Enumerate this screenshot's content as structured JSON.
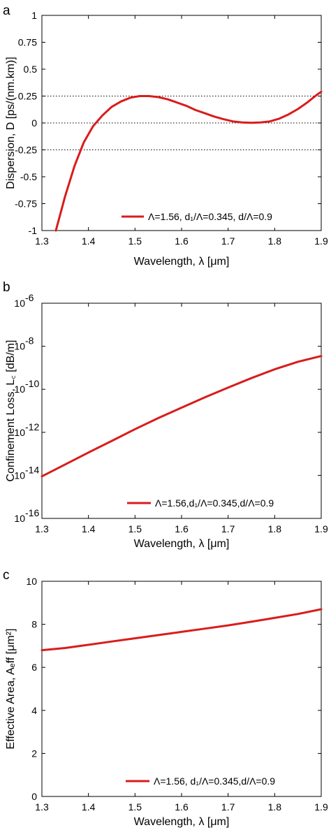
{
  "panels": [
    {
      "label": "a",
      "xlabel": "Wavelength, λ [μm]",
      "ylabel": "Dispersion, D [ps/(nm.km)]",
      "legend": "Λ=1.56, d₁/Λ=0.345, d/Λ=0.9"
    },
    {
      "label": "b",
      "xlabel": "Wavelength, λ [μm]",
      "ylabel": "Confinement Loss, L꜀ [dB/m]",
      "legend": "Λ=1.56,d₁/Λ=0.345,d/Λ=0.9"
    },
    {
      "label": "c",
      "xlabel": "Wavelength, λ [μm]",
      "ylabel": "Effective Area, Aₑff [μm²]",
      "legend": "Λ=1.56, d₁/Λ=0.345,d/Λ=0.9"
    }
  ],
  "chart_data": [
    {
      "type": "line",
      "panel": "a",
      "xlabel": "Wavelength, λ [μm]",
      "ylabel": "Dispersion, D [ps/(nm.km)]",
      "xlim": [
        1.3,
        1.9
      ],
      "ylim": [
        -1,
        1
      ],
      "xticks": [
        1.3,
        1.4,
        1.5,
        1.6,
        1.7,
        1.8,
        1.9
      ],
      "yticks": [
        -1,
        -0.75,
        -0.5,
        -0.25,
        0,
        0.25,
        0.5,
        0.75,
        1
      ],
      "ytick_labels": [
        "-1",
        "-0.75",
        "-0.5",
        "-0.25",
        "0",
        "0.25",
        "0.5",
        "0.75",
        "1"
      ],
      "hlines": [
        0.25,
        0,
        -0.25
      ],
      "legend_position": "bottom-right",
      "grid": false,
      "series": [
        {
          "name": "Λ=1.56, d₁/Λ=0.345, d/Λ=0.9",
          "color": "#d91c1c",
          "x": [
            1.33,
            1.35,
            1.37,
            1.39,
            1.41,
            1.43,
            1.45,
            1.47,
            1.49,
            1.51,
            1.53,
            1.55,
            1.57,
            1.59,
            1.61,
            1.63,
            1.65,
            1.67,
            1.69,
            1.71,
            1.73,
            1.75,
            1.77,
            1.79,
            1.81,
            1.83,
            1.85,
            1.87,
            1.89,
            1.9
          ],
          "y": [
            -1.0,
            -0.68,
            -0.4,
            -0.18,
            -0.03,
            0.07,
            0.15,
            0.2,
            0.235,
            0.25,
            0.25,
            0.24,
            0.22,
            0.19,
            0.16,
            0.12,
            0.09,
            0.06,
            0.035,
            0.015,
            0.005,
            0.002,
            0.005,
            0.015,
            0.04,
            0.08,
            0.13,
            0.19,
            0.26,
            0.29
          ]
        }
      ]
    },
    {
      "type": "line",
      "panel": "b",
      "xlabel": "Wavelength, λ [μm]",
      "ylabel": "Confinement Loss, L꜀ [dB/m]",
      "xlim": [
        1.3,
        1.9
      ],
      "yscale": "log",
      "ylim": [
        1e-16,
        1e-06
      ],
      "xticks": [
        1.3,
        1.4,
        1.5,
        1.6,
        1.7,
        1.8,
        1.9
      ],
      "yticks": [
        1e-16,
        1e-14,
        1e-12,
        1e-10,
        1e-08,
        1e-06
      ],
      "ytick_exponents": [
        "-16",
        "-14",
        "-12",
        "-10",
        "-8",
        "-6"
      ],
      "legend_position": "bottom-right",
      "grid": false,
      "series": [
        {
          "name": "Λ=1.56,d₁/Λ=0.345,d/Λ=0.9",
          "color": "#d91c1c",
          "x": [
            1.3,
            1.35,
            1.4,
            1.45,
            1.5,
            1.55,
            1.6,
            1.65,
            1.7,
            1.75,
            1.8,
            1.85,
            1.9
          ],
          "y": [
            9e-15,
            3.2e-14,
            1.15e-13,
            4e-13,
            1.4e-12,
            4.6e-12,
            1.4e-11,
            4.2e-11,
            1.2e-10,
            3.3e-10,
            8.5e-10,
            1.9e-09,
            3.5e-09
          ]
        }
      ]
    },
    {
      "type": "line",
      "panel": "c",
      "xlabel": "Wavelength, λ [μm]",
      "ylabel": "Effective Area, Aₑff [μm²]",
      "xlim": [
        1.3,
        1.9
      ],
      "ylim": [
        0,
        10
      ],
      "xticks": [
        1.3,
        1.4,
        1.5,
        1.6,
        1.7,
        1.8,
        1.9
      ],
      "yticks": [
        0,
        2,
        4,
        6,
        8,
        10
      ],
      "legend_position": "bottom-right",
      "grid": false,
      "series": [
        {
          "name": "Λ=1.56, d₁/Λ=0.345,d/Λ=0.9",
          "color": "#d91c1c",
          "x": [
            1.3,
            1.35,
            1.4,
            1.45,
            1.5,
            1.55,
            1.6,
            1.65,
            1.7,
            1.75,
            1.8,
            1.85,
            1.9
          ],
          "y": [
            6.8,
            6.9,
            7.05,
            7.2,
            7.35,
            7.5,
            7.65,
            7.8,
            7.95,
            8.12,
            8.3,
            8.48,
            8.7
          ]
        }
      ]
    }
  ]
}
